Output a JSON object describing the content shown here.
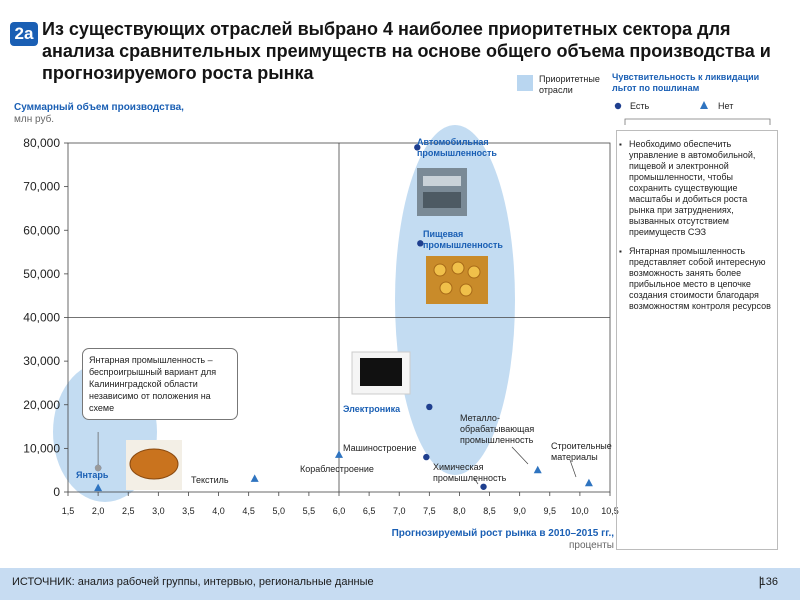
{
  "badge": "2a",
  "title": "Из существующих отраслей выбрано 4 наиболее приоритетных сектора для анализа сравнительных преимуществ на основе общего объема производства и прогнозируемого роста рынка",
  "legend": {
    "priority_label": "Приоритетные отрасли",
    "sensitivity_title": "Чувствительность к ликвидации льгот по пошлинам",
    "yes_label": "Есть",
    "no_label": "Нет",
    "colors": {
      "priority": "#b9d6f0",
      "yes": "#1f3f8f",
      "no": "#2f74c0"
    }
  },
  "sidebar": {
    "bullets": [
      "Необходимо обеспечить управление в автомобильной, пищевой и электронной промышленности, чтобы сохранить существующие масштабы и добиться роста рынка при затруднениях, вызванных отсутствием преимуществ СЭЗ",
      "Янтарная промышленность представляет собой интересную возможность занять более прибыльное место в цепочке создания стоимости благодаря возможностям контроля ресурсов"
    ]
  },
  "callout": "Янтарная промышленность – беспроигрышный вариант для Калининградской области независимо от положения на схеме",
  "footer": {
    "source": "ИСТОЧНИК: анализ рабочей группы, интервью, региональные данные",
    "page": "136"
  },
  "chart_data": {
    "type": "scatter",
    "title": "",
    "ylabel_bold": "Суммарный объем производства,",
    "ylabel_unit": "млн руб.",
    "xlabel_bold": "Прогнозируемый рост рынка в 2010–2015 гг.,",
    "xlabel_unit": "проценты",
    "xlim": [
      1.5,
      10.5
    ],
    "ylim": [
      0,
      80000
    ],
    "xticks": [
      "1,5",
      "2,0",
      "2,5",
      "3,0",
      "3,5",
      "4,0",
      "4,5",
      "5,0",
      "5,5",
      "6,0",
      "6,5",
      "7,0",
      "7,5",
      "8,0",
      "8,5",
      "9,0",
      "9,5",
      "10,0",
      "10,5"
    ],
    "yticks": [
      "0",
      "10,000",
      "20,000",
      "30,000",
      "40,000",
      "50,000",
      "60,000",
      "70,000",
      "80,000"
    ],
    "divider_x": 6.0,
    "divider_y": 40000,
    "points": [
      {
        "label": "Автомобильная промышленность",
        "x": 7.3,
        "y": 79000,
        "marker": "yes",
        "priority": true
      },
      {
        "label": "Пищевая промышленность",
        "x": 7.35,
        "y": 57000,
        "marker": "yes",
        "priority": true
      },
      {
        "label": "Электроника",
        "x": 7.5,
        "y": 19500,
        "marker": "yes",
        "priority": true
      },
      {
        "label": "Янтарь",
        "x": 2.0,
        "y": 5500,
        "marker": "yes",
        "priority": true
      },
      {
        "label": "Машиностроение",
        "x": 7.45,
        "y": 8000,
        "marker": "yes",
        "priority": false
      },
      {
        "label": "Металло-обрабатывающая промышленность",
        "x": 9.3,
        "y": 5000,
        "marker": "no",
        "priority": false
      },
      {
        "label": "Химическая промышленность",
        "x": 8.4,
        "y": 1200,
        "marker": "yes",
        "priority": false
      },
      {
        "label": "Строительные материалы",
        "x": 10.15,
        "y": 2000,
        "marker": "no",
        "priority": false
      },
      {
        "label": "Текстиль",
        "x": 4.6,
        "y": 3000,
        "marker": "no",
        "priority": false
      },
      {
        "label": "Кораблестроение",
        "x": 6.0,
        "y": 8500,
        "marker": "no",
        "priority": false
      },
      {
        "label": "Янтарь",
        "x": 2.0,
        "y": 900,
        "marker": "no",
        "priority": true
      }
    ]
  }
}
